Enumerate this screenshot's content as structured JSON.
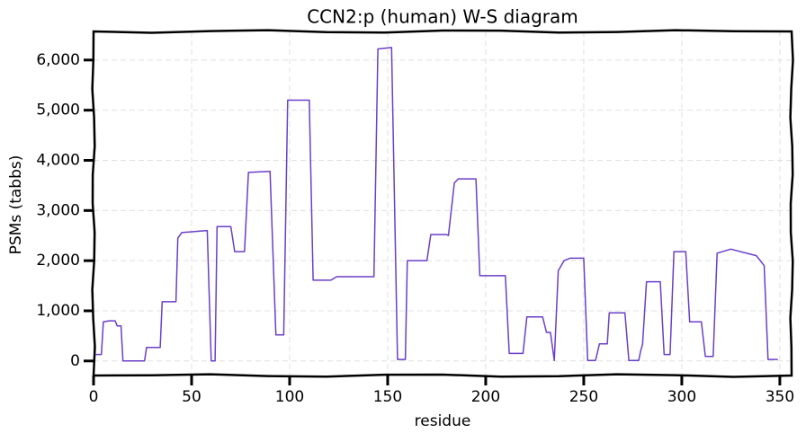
{
  "chart_data": {
    "type": "line",
    "title": "CCN2:p (human) W-S diagram",
    "xlabel": "residue",
    "ylabel": "PSMs (tabbs)",
    "color": "#6a3fc8",
    "grid": true,
    "xlim": [
      0,
      356
    ],
    "ylim": [
      -290,
      6570
    ],
    "xticks": [
      0,
      50,
      100,
      150,
      200,
      250,
      300,
      350
    ],
    "yticks": [
      0,
      {
        "value": 1000,
        "label": "1,000"
      },
      {
        "value": 2000,
        "label": "2,000"
      },
      {
        "value": 3000,
        "label": "3,000"
      },
      {
        "value": 4000,
        "label": "4,000"
      },
      {
        "value": 5000,
        "label": "5,000"
      },
      {
        "value": 6000,
        "label": "6,000"
      }
    ],
    "x": [
      1,
      4,
      5,
      8,
      11,
      12,
      14,
      15,
      26,
      27,
      34,
      35,
      42,
      43,
      45,
      58,
      60,
      62,
      63,
      70,
      72,
      77,
      79,
      90,
      93,
      97,
      99,
      110,
      112,
      121,
      124,
      143,
      145,
      152,
      155,
      159,
      160,
      170,
      172,
      180,
      181,
      184,
      186,
      195,
      197,
      210,
      212,
      219,
      221,
      229,
      231,
      233,
      235,
      237,
      240,
      243,
      250,
      252,
      256,
      258,
      262,
      263,
      271,
      273,
      278,
      279,
      280,
      282,
      289,
      291,
      294,
      296,
      302,
      304,
      310,
      312,
      316,
      318,
      325,
      338,
      342,
      344,
      349
    ],
    "values": [
      130,
      130,
      780,
      800,
      800,
      700,
      700,
      0,
      0,
      270,
      270,
      1180,
      1180,
      2450,
      2560,
      2600,
      0,
      0,
      2680,
      2680,
      2180,
      2180,
      3760,
      3780,
      520,
      520,
      5200,
      5200,
      1610,
      1610,
      1680,
      1680,
      6220,
      6250,
      30,
      30,
      2000,
      2000,
      2520,
      2520,
      2500,
      3550,
      3630,
      3630,
      1700,
      1700,
      150,
      150,
      880,
      880,
      570,
      570,
      10,
      1800,
      2000,
      2050,
      2050,
      10,
      10,
      340,
      340,
      960,
      960,
      10,
      10,
      200,
      330,
      1580,
      1580,
      130,
      130,
      2180,
      2180,
      780,
      780,
      90,
      90,
      2150,
      2230,
      2100,
      1900,
      30,
      30
    ]
  }
}
